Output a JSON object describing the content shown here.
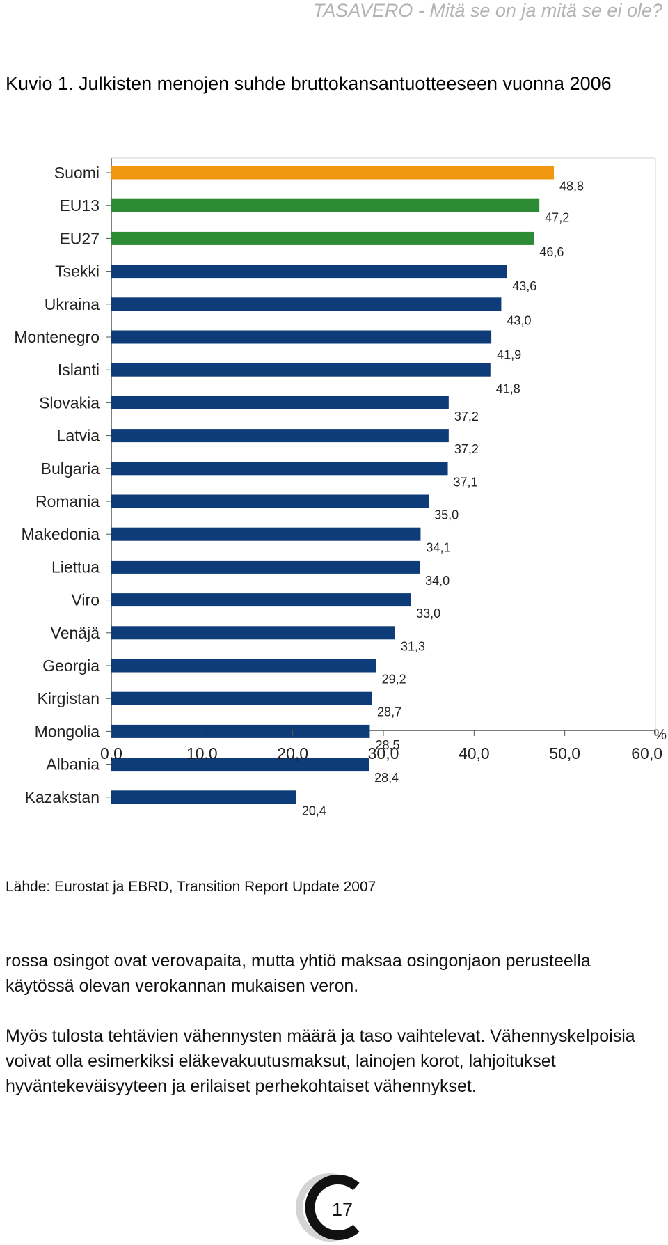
{
  "header": {
    "title": "TASAVERO - Mitä se on ja mitä se ei ole?"
  },
  "figure": {
    "title": "Kuvio 1. Julkisten menojen suhde bruttokansantuotteeseen vuonna 2006"
  },
  "chart_data": {
    "type": "bar",
    "orientation": "horizontal",
    "title": "Kuvio 1. Julkisten menojen suhde bruttokansantuotteeseen vuonna 2006",
    "categories": [
      "Suomi",
      "EU13",
      "EU27",
      "Tsekki",
      "Ukraina",
      "Montenegro",
      "Islanti",
      "Slovakia",
      "Latvia",
      "Bulgaria",
      "Romania",
      "Makedonia",
      "Liettua",
      "Viro",
      "Venäjä",
      "Georgia",
      "Kirgistan",
      "Mongolia",
      "Albania",
      "Kazakstan"
    ],
    "values": [
      48.8,
      47.2,
      46.6,
      43.6,
      43.0,
      41.9,
      41.8,
      37.2,
      37.2,
      37.1,
      35.0,
      34.1,
      34.0,
      33.0,
      31.3,
      29.2,
      28.7,
      28.5,
      28.4,
      20.4
    ],
    "value_labels": [
      "48,8",
      "47,2",
      "46,6",
      "43,6",
      "43,0",
      "41,9",
      "41,8",
      "37,2",
      "37,2",
      "37,1",
      "35,0",
      "34,1",
      "34,0",
      "33,0",
      "31,3",
      "29,2",
      "28,7",
      "28,5",
      "28,4",
      "20,4"
    ],
    "bar_colors": [
      "#f0960f",
      "#2e8b35",
      "#2e8b35",
      "#0d3c78",
      "#0d3c78",
      "#0d3c78",
      "#0d3c78",
      "#0d3c78",
      "#0d3c78",
      "#0d3c78",
      "#0d3c78",
      "#0d3c78",
      "#0d3c78",
      "#0d3c78",
      "#0d3c78",
      "#0d3c78",
      "#0d3c78",
      "#0d3c78",
      "#0d3c78",
      "#0d3c78"
    ],
    "x_ticks": [
      "0,0",
      "10,0",
      "20,0",
      "30,0",
      "40,0",
      "50,0",
      "60,0"
    ],
    "xlim": [
      0,
      60
    ],
    "x_unit": "%",
    "grid": false
  },
  "source": "Lähde: Eurostat ja EBRD, Transition Report Update 2007",
  "body_text": {
    "paragraph1": "rossa osingot ovat verovapaita, mutta yhtiö maksaa osingonjaon perusteella käytössä olevan verokannan mukaisen veron.",
    "paragraph2": "Myös tulosta tehtävien vähennysten määrä ja taso vaihtelevat. Vähennyskelpoisia voivat olla esimerkiksi eläkevakuutusmaksut, lainojen korot, lahjoitukset hyväntekeväisyyteen ja erilaiset perhekohtaiset vähennykset."
  },
  "page_number": "17",
  "colors": {
    "finland": "#f0960f",
    "eu": "#2e8b35",
    "other": "#0d3c78",
    "header_gray": "#b3b3b3"
  }
}
